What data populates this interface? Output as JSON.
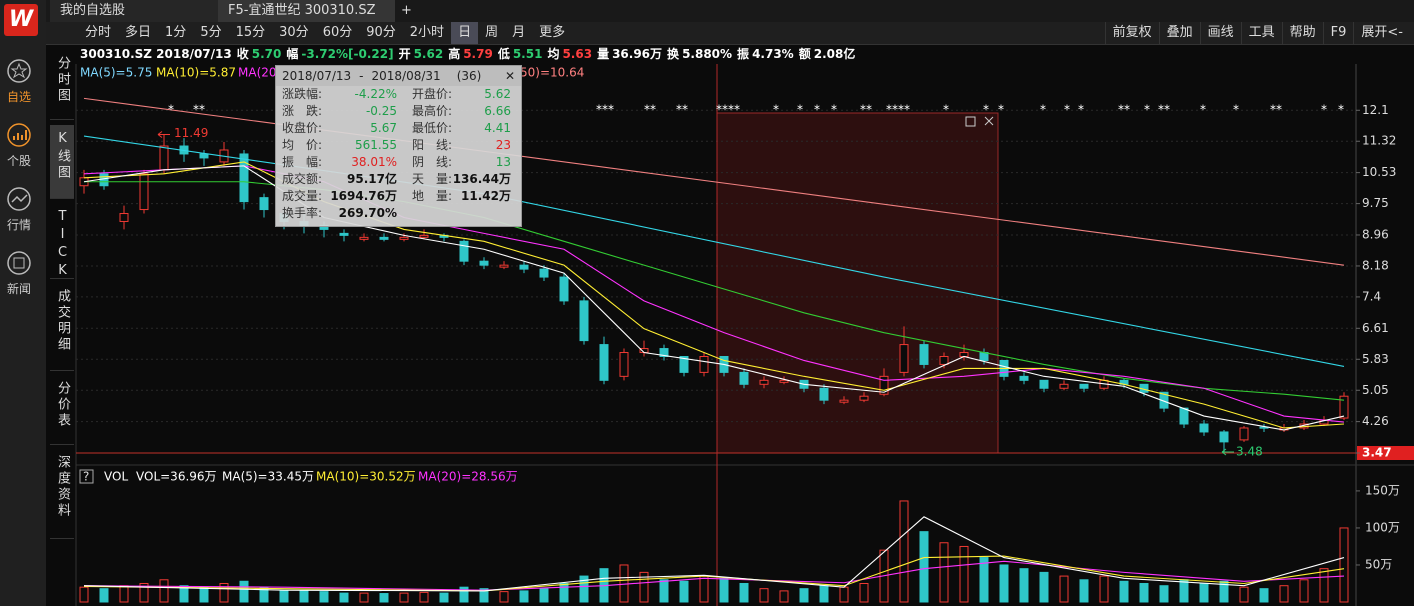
{
  "tabs": [
    "我的自选股",
    "F5-宜通世纪 300310.SZ",
    "+"
  ],
  "sidebar": [
    "自选",
    "个股",
    "行情",
    "新闻"
  ],
  "toolbar": {
    "periods": [
      "分时",
      "多日",
      "1分",
      "5分",
      "15分",
      "30分",
      "60分",
      "90分",
      "2小时",
      "日",
      "周",
      "月",
      "更多"
    ],
    "tools": [
      "前复权",
      "叠加",
      "画线",
      "工具",
      "帮助",
      "F9",
      "展开<-"
    ]
  },
  "side_tabs": [
    "分时图",
    "K线图",
    "TICK",
    "成交明细",
    "分价表",
    "深度资料"
  ],
  "info": {
    "code": "300310.SZ 2018/07/13",
    "items": [
      {
        "label": "收",
        "value": "5.70",
        "color": "#2ecc71"
      },
      {
        "label": "幅",
        "value": "-3.72%[-0.22]",
        "color": "#2ecc71"
      },
      {
        "label": "开",
        "value": "5.62",
        "color": "#2ecc71"
      },
      {
        "label": "高",
        "value": "5.79",
        "color": "#ff4040"
      },
      {
        "label": "低",
        "value": "5.51",
        "color": "#2ecc71"
      },
      {
        "label": "均",
        "value": "5.63",
        "color": "#ff4040"
      },
      {
        "label": "量",
        "value": "36.96万",
        "color": "#ffffff"
      },
      {
        "label": "换",
        "value": "5.880%",
        "color": "#ffffff"
      },
      {
        "label": "振",
        "value": "4.73%",
        "color": "#ffffff"
      },
      {
        "label": "额",
        "value": "2.08亿",
        "color": "#ffffff"
      }
    ]
  },
  "chart_data": [
    {
      "type": "candlestick",
      "ylim": [
        3.47,
        13.24
      ],
      "yticks": [
        12.1,
        11.32,
        10.53,
        9.75,
        8.96,
        8.18,
        7.4,
        6.61,
        5.83,
        5.05,
        4.26,
        3.47
      ],
      "grid": true,
      "up_color": "#f03a33",
      "down_color": "#2fc6c8",
      "legend": [
        {
          "text": "MA(5)=5.75",
          "color": "#7fd8ff"
        },
        {
          "text": "MA(10)=5.87",
          "color": "#ffee33"
        },
        {
          "text": "MA(20)",
          "color": "#ff33ff"
        },
        {
          "text": "50)=10.64",
          "color": "#ff8080"
        }
      ],
      "stars": [
        "*",
        "**",
        "***",
        "**",
        "**",
        "****",
        "*",
        "*",
        "*",
        "*",
        "**",
        "****",
        "*",
        "*",
        "*",
        "*",
        "*",
        "*",
        "**",
        "*",
        "**",
        "*",
        "*",
        "**",
        "*",
        "*"
      ],
      "high_label": 11.49,
      "low_label": 3.48,
      "candles": [
        [
          10.2,
          10.6,
          10.0,
          10.4
        ],
        [
          10.5,
          10.6,
          10.1,
          10.2
        ],
        [
          9.3,
          9.7,
          9.1,
          9.5
        ],
        [
          9.6,
          10.6,
          9.5,
          10.5
        ],
        [
          10.6,
          11.49,
          10.5,
          11.2
        ],
        [
          11.2,
          11.4,
          10.8,
          11.0
        ],
        [
          11.0,
          11.1,
          10.7,
          10.9
        ],
        [
          10.8,
          11.3,
          10.7,
          11.1
        ],
        [
          11.0,
          11.1,
          9.6,
          9.8
        ],
        [
          9.9,
          10.0,
          9.4,
          9.6
        ],
        [
          9.5,
          9.6,
          9.1,
          9.3
        ],
        [
          9.3,
          9.5,
          9.0,
          9.2
        ],
        [
          9.2,
          9.3,
          8.9,
          9.1
        ],
        [
          9.0,
          9.1,
          8.8,
          8.95
        ],
        [
          8.85,
          9.0,
          8.8,
          8.9
        ],
        [
          8.9,
          9.0,
          8.8,
          8.85
        ],
        [
          8.85,
          9.0,
          8.8,
          8.9
        ],
        [
          8.9,
          9.1,
          8.85,
          8.95
        ],
        [
          8.95,
          9.0,
          8.8,
          8.9
        ],
        [
          8.8,
          8.85,
          8.2,
          8.3
        ],
        [
          8.3,
          8.4,
          8.1,
          8.2
        ],
        [
          8.15,
          8.3,
          8.1,
          8.2
        ],
        [
          8.2,
          8.3,
          8.0,
          8.1
        ],
        [
          8.1,
          8.2,
          7.8,
          7.9
        ],
        [
          7.9,
          8.0,
          7.2,
          7.3
        ],
        [
          7.3,
          7.4,
          6.2,
          6.3
        ],
        [
          6.2,
          6.4,
          5.2,
          5.3
        ],
        [
          5.4,
          6.1,
          5.3,
          6.0
        ],
        [
          6.0,
          6.3,
          5.9,
          6.1
        ],
        [
          6.1,
          6.2,
          5.8,
          5.9
        ],
        [
          5.9,
          5.9,
          5.4,
          5.5
        ],
        [
          5.5,
          6.0,
          5.4,
          5.9
        ],
        [
          5.9,
          5.9,
          5.4,
          5.5
        ],
        [
          5.5,
          5.6,
          5.1,
          5.2
        ],
        [
          5.2,
          5.4,
          5.1,
          5.3
        ],
        [
          5.25,
          5.4,
          5.2,
          5.3
        ],
        [
          5.3,
          5.3,
          5.0,
          5.1
        ],
        [
          5.1,
          5.2,
          4.7,
          4.8
        ],
        [
          4.75,
          4.9,
          4.7,
          4.8
        ],
        [
          4.8,
          5.0,
          4.75,
          4.9
        ],
        [
          4.95,
          5.6,
          4.9,
          5.4
        ],
        [
          5.5,
          6.66,
          5.4,
          6.2
        ],
        [
          6.2,
          6.3,
          5.6,
          5.7
        ],
        [
          5.7,
          6.0,
          5.6,
          5.9
        ],
        [
          5.9,
          6.2,
          5.8,
          6.0
        ],
        [
          6.0,
          6.1,
          5.7,
          5.8
        ],
        [
          5.8,
          5.8,
          5.3,
          5.4
        ],
        [
          5.4,
          5.5,
          5.2,
          5.3
        ],
        [
          5.3,
          5.3,
          5.0,
          5.1
        ],
        [
          5.1,
          5.3,
          5.05,
          5.2
        ],
        [
          5.2,
          5.2,
          5.0,
          5.1
        ],
        [
          5.1,
          5.4,
          5.05,
          5.3
        ],
        [
          5.3,
          5.35,
          5.1,
          5.2
        ],
        [
          5.2,
          5.2,
          4.9,
          5.0
        ],
        [
          5.0,
          5.0,
          4.5,
          4.6
        ],
        [
          4.6,
          4.6,
          4.1,
          4.2
        ],
        [
          4.2,
          4.3,
          3.9,
          4.0
        ],
        [
          4.0,
          4.05,
          3.48,
          3.75
        ],
        [
          3.8,
          4.15,
          3.75,
          4.1
        ],
        [
          4.12,
          4.2,
          4.0,
          4.1
        ],
        [
          4.05,
          4.2,
          4.0,
          4.1
        ],
        [
          4.1,
          4.3,
          4.05,
          4.2
        ],
        [
          4.2,
          4.4,
          4.15,
          4.3
        ],
        [
          4.35,
          5.0,
          4.3,
          4.9
        ]
      ],
      "series": [
        {
          "color": "#f08080",
          "x": [
            0,
            63
          ],
          "values": [
            12.4,
            8.2
          ]
        },
        {
          "color": "#33d6e6",
          "x": [
            0,
            20,
            40,
            63
          ],
          "values": [
            11.45,
            10.0,
            7.9,
            5.65
          ]
        },
        {
          "color": "#33cc33",
          "x": [
            0,
            4,
            8,
            12,
            16,
            20,
            24,
            28,
            32,
            36,
            40,
            44,
            48,
            52,
            56,
            60,
            63
          ],
          "values": [
            10.3,
            10.3,
            10.3,
            10.1,
            9.8,
            9.4,
            8.8,
            8.2,
            7.6,
            7.0,
            6.5,
            6.1,
            5.7,
            5.35,
            5.1,
            4.95,
            4.8
          ]
        },
        {
          "color": "#ff33ff",
          "x": [
            0,
            4,
            8,
            12,
            16,
            20,
            24,
            28,
            32,
            36,
            40,
            44,
            48,
            52,
            56,
            60,
            63
          ],
          "values": [
            10.5,
            10.6,
            10.7,
            10.3,
            9.4,
            9.0,
            8.6,
            7.3,
            6.5,
            5.8,
            5.3,
            5.4,
            5.6,
            5.4,
            5.1,
            4.4,
            4.25
          ]
        },
        {
          "color": "#ffee33",
          "x": [
            0,
            4,
            8,
            12,
            16,
            20,
            24,
            28,
            32,
            36,
            40,
            44,
            48,
            52,
            56,
            60,
            63
          ],
          "values": [
            10.4,
            10.5,
            10.8,
            9.8,
            9.1,
            8.8,
            8.2,
            6.6,
            5.8,
            5.4,
            5.05,
            5.6,
            5.6,
            5.2,
            4.7,
            4.1,
            4.2
          ]
        },
        {
          "color": "#ffffff",
          "x": [
            0,
            4,
            8,
            12,
            16,
            20,
            24,
            28,
            32,
            36,
            40,
            44,
            48,
            52,
            56,
            60,
            63
          ],
          "values": [
            10.3,
            10.6,
            10.7,
            9.4,
            8.95,
            8.6,
            8.0,
            6.0,
            5.7,
            5.2,
            5.0,
            5.9,
            5.4,
            5.15,
            4.4,
            4.05,
            4.4
          ]
        }
      ],
      "tooltip": {
        "start": "2018/07/13",
        "sep": "-",
        "end": "2018/08/31",
        "count": "(36)",
        "close": "✕",
        "rows": [
          [
            {
              "label": "涨跌幅:",
              "value": "-4.22%",
              "color": "#1e9e4a"
            },
            {
              "label": "开盘价:",
              "value": "5.62",
              "color": "#1e9e4a"
            }
          ],
          [
            {
              "label": "涨　跌:",
              "value": "-0.25",
              "color": "#1e9e4a"
            },
            {
              "label": "最高价:",
              "value": "6.66",
              "color": "#1e9e4a"
            }
          ],
          [
            {
              "label": "收盘价:",
              "value": "5.67",
              "color": "#1e9e4a"
            },
            {
              "label": "最低价:",
              "value": "4.41",
              "color": "#1e9e4a"
            }
          ],
          [
            {
              "label": "均　价:",
              "value": "561.55",
              "color": "#1e9e4a"
            },
            {
              "label": "阳　线:",
              "value": "23",
              "color": "#e02020"
            }
          ],
          [
            {
              "label": "振　幅:",
              "value": "38.01%",
              "color": "#e02020"
            },
            {
              "label": "阴　线:",
              "value": "13",
              "color": "#1e9e4a"
            }
          ],
          [
            {
              "label": "成交额:",
              "value": "95.17亿",
              "color": "#111111"
            },
            {
              "label": "天　量:",
              "value": "136.44万",
              "color": "#111111"
            }
          ],
          [
            {
              "label": "成交量:",
              "value": "1694.76万",
              "color": "#111111"
            },
            {
              "label": "地　量:",
              "value": "11.42万",
              "color": "#111111"
            }
          ],
          [
            {
              "label": "换手率:",
              "value": "269.70%",
              "color": "#111111"
            }
          ]
        ]
      }
    },
    {
      "type": "bar",
      "help": "?",
      "title": "VOL",
      "ylim": [
        0,
        185
      ],
      "yticks": [
        {
          "value": 50,
          "label": "50万"
        },
        {
          "value": 100,
          "label": "100万"
        },
        {
          "value": 150,
          "label": "150万"
        }
      ],
      "legend": [
        {
          "text": "VOL=36.96万",
          "color": "#ffffff"
        },
        {
          "text": "MA(5)=33.45万",
          "color": "#ffffff"
        },
        {
          "text": "MA(10)=30.52万",
          "color": "#ffee33"
        },
        {
          "text": "MA(20)=28.56万",
          "color": "#ff33ff"
        }
      ],
      "values": [
        20,
        18,
        22,
        25,
        30,
        22,
        20,
        25,
        28,
        20,
        15,
        15,
        14,
        12,
        12,
        11.42,
        12,
        13,
        12,
        20,
        18,
        14,
        15,
        18,
        25,
        35,
        45,
        50,
        40,
        30,
        28,
        35,
        32,
        25,
        18,
        15,
        18,
        22,
        20,
        25,
        70,
        136.44,
        95,
        80,
        75,
        60,
        50,
        45,
        40,
        35,
        30,
        35,
        28,
        25,
        22,
        30,
        25,
        28,
        20,
        18,
        22,
        30,
        45,
        100
      ],
      "series": [
        {
          "color": "#ff33ff",
          "x": [
            0,
            10,
            20,
            26,
            31,
            38,
            42,
            46,
            52,
            58,
            63
          ],
          "values": [
            22,
            20,
            16,
            22,
            32,
            26,
            45,
            55,
            40,
            28,
            35
          ]
        },
        {
          "color": "#ffee33",
          "x": [
            0,
            10,
            20,
            26,
            31,
            38,
            42,
            46,
            52,
            58,
            63
          ],
          "values": [
            21,
            18,
            15,
            28,
            35,
            22,
            60,
            62,
            35,
            25,
            45
          ]
        },
        {
          "color": "#ffffff",
          "x": [
            0,
            10,
            20,
            26,
            31,
            38,
            42,
            46,
            52,
            58,
            63
          ],
          "values": [
            22,
            16,
            15,
            32,
            36,
            20,
            115,
            60,
            32,
            22,
            60
          ]
        }
      ]
    }
  ]
}
